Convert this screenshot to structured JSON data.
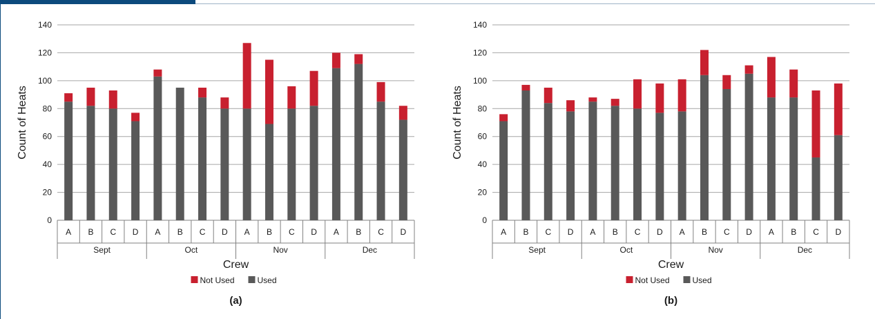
{
  "colors": {
    "used": "#595959",
    "not_used": "#c8202f",
    "frame_accent": "#0c4a7d",
    "frame_line": "#9fb4c7",
    "grid": "#a6a6a6",
    "axis": "#808080"
  },
  "chart_data": [
    {
      "type": "bar",
      "stacked": true,
      "caption": "(a)",
      "ylabel": "Count of Heats",
      "xlabel": "Crew",
      "ylim": [
        0,
        140
      ],
      "yticks": [
        0,
        20,
        40,
        60,
        80,
        100,
        120,
        140
      ],
      "grid": true,
      "legend_position": "bottom",
      "groups": [
        {
          "label": "Sept",
          "crews": [
            "A",
            "B",
            "C",
            "D"
          ]
        },
        {
          "label": "Oct",
          "crews": [
            "A",
            "B",
            "C",
            "D"
          ]
        },
        {
          "label": "Nov",
          "crews": [
            "A",
            "B",
            "C",
            "D"
          ]
        },
        {
          "label": "Dec",
          "crews": [
            "A",
            "B",
            "C",
            "D"
          ]
        }
      ],
      "series": [
        {
          "name": "Used",
          "values": [
            85,
            82,
            80,
            71,
            103,
            95,
            88,
            80,
            80,
            69,
            80,
            82,
            109,
            112,
            85,
            72
          ]
        },
        {
          "name": "Not Used",
          "values": [
            6,
            13,
            13,
            6,
            5,
            0,
            7,
            8,
            47,
            46,
            16,
            25,
            11,
            7,
            14,
            10
          ]
        }
      ],
      "legend": [
        "Not Used",
        "Used"
      ]
    },
    {
      "type": "bar",
      "stacked": true,
      "caption": "(b)",
      "ylabel": "Count of Heats",
      "xlabel": "Crew",
      "ylim": [
        0,
        140
      ],
      "yticks": [
        0,
        20,
        40,
        60,
        80,
        100,
        120,
        140
      ],
      "grid": true,
      "legend_position": "bottom",
      "groups": [
        {
          "label": "Sept",
          "crews": [
            "A",
            "B",
            "C",
            "D"
          ]
        },
        {
          "label": "Oct",
          "crews": [
            "A",
            "B",
            "C",
            "D"
          ]
        },
        {
          "label": "Nov",
          "crews": [
            "A",
            "B",
            "C",
            "D"
          ]
        },
        {
          "label": "Dec",
          "crews": [
            "A",
            "B",
            "C",
            "D"
          ]
        }
      ],
      "series": [
        {
          "name": "Used",
          "values": [
            71,
            93,
            84,
            78,
            85,
            82,
            80,
            77,
            78,
            104,
            94,
            105,
            88,
            88,
            45,
            61
          ]
        },
        {
          "name": "Not Used",
          "values": [
            5,
            4,
            11,
            8,
            3,
            5,
            21,
            21,
            23,
            18,
            10,
            6,
            29,
            20,
            48,
            37
          ]
        }
      ],
      "legend": [
        "Not Used",
        "Used"
      ]
    }
  ]
}
